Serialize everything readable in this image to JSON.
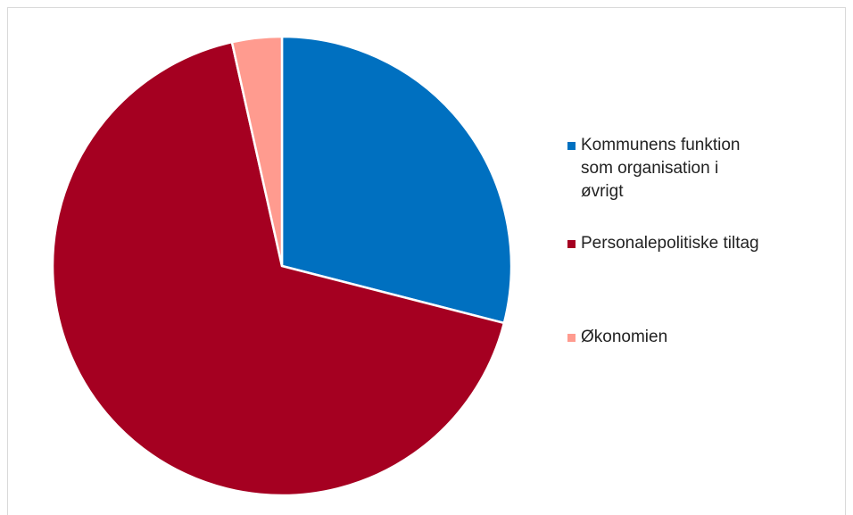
{
  "chart_data": {
    "type": "pie",
    "categories": [
      "Kommunens funktion som organisation i øvrigt",
      "Personalepolitiske tiltag",
      "Økonomien"
    ],
    "values": [
      29,
      67.5,
      3.5
    ],
    "colors": [
      "#0070c0",
      "#a50021",
      "#ff9b8f"
    ],
    "legend": "right"
  }
}
